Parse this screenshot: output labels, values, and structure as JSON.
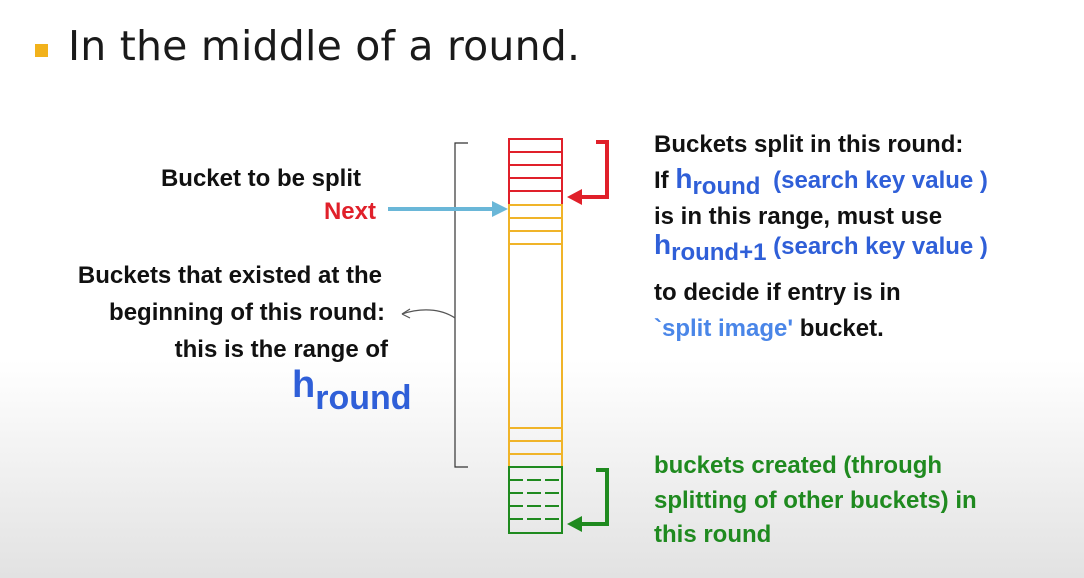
{
  "heading": {
    "text": "In the middle of a round."
  },
  "left_labels": {
    "bucket_to_be_split": "Bucket to be split",
    "next": "Next",
    "existed_line1": "Buckets that existed at the",
    "existed_line2": "beginning of this round:",
    "existed_line3": "this is the range of",
    "h": "h",
    "h_sub": "round"
  },
  "right_top": {
    "line1": "Buckets split in this round:",
    "if_word": "If",
    "h1": "h",
    "h1_sub": "round",
    "h1_arg": "(search key value )",
    "line3": "is in this range, must use",
    "h2": "h",
    "h2_sub": "round+1",
    "h2_arg": "(search key value )",
    "line5": "to decide if entry is in",
    "split_image": "`split image'",
    "bucket_word": "bucket."
  },
  "right_bottom": {
    "line1": "buckets created (through",
    "line2": "splitting of other buckets) in",
    "line3": "this round"
  },
  "colors": {
    "red": "#e0202a",
    "orange": "#f0b429",
    "green": "#1f8a1f",
    "blue": "#2f5fd8",
    "arrow_blue": "#6ab7d8",
    "bullet": "#f2b21b"
  }
}
